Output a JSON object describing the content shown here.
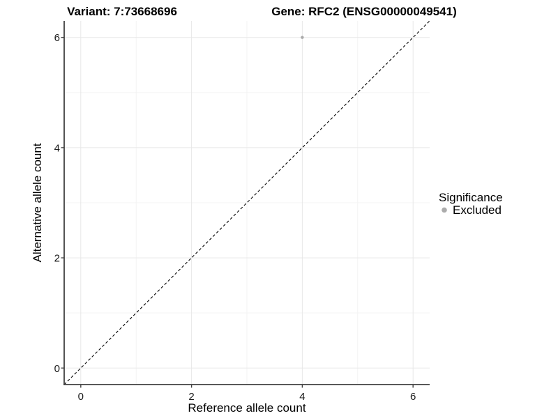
{
  "chart_data": {
    "type": "scatter",
    "titles": {
      "left": "Variant: 7:73668696",
      "right": "Gene: RFC2 (ENSG00000049541)"
    },
    "xlabel": "Reference allele count",
    "ylabel": "Alternative allele count",
    "xlim": [
      -0.3,
      6.3
    ],
    "ylim": [
      -0.3,
      6.3
    ],
    "x_breaks": [
      0,
      2,
      4,
      6
    ],
    "y_breaks": [
      0,
      2,
      4,
      6
    ],
    "x_minor_breaks": [
      1,
      3,
      5
    ],
    "y_minor_breaks": [
      1,
      3,
      5
    ],
    "grid": true,
    "series": [
      {
        "name": "Excluded",
        "color": "#ababab",
        "point_radius": 2.2,
        "points": [
          {
            "x": 4,
            "y": 6
          }
        ]
      }
    ],
    "identity_line": {
      "slope": 1,
      "intercept": 0,
      "linetype": "dashed",
      "color": "#000000"
    },
    "legend": {
      "title": "Significance",
      "position": "right",
      "entries": [
        {
          "label": "Excluded",
          "color": "#ababab",
          "marker": "circle"
        }
      ]
    },
    "colors": {
      "background": "#ffffff",
      "grid_major": "#e7e7e7",
      "grid_minor": "#f3f3f3",
      "axis_line": "#404040",
      "tick_mark": "#404040",
      "tick_text": "#1a1a1a"
    }
  }
}
